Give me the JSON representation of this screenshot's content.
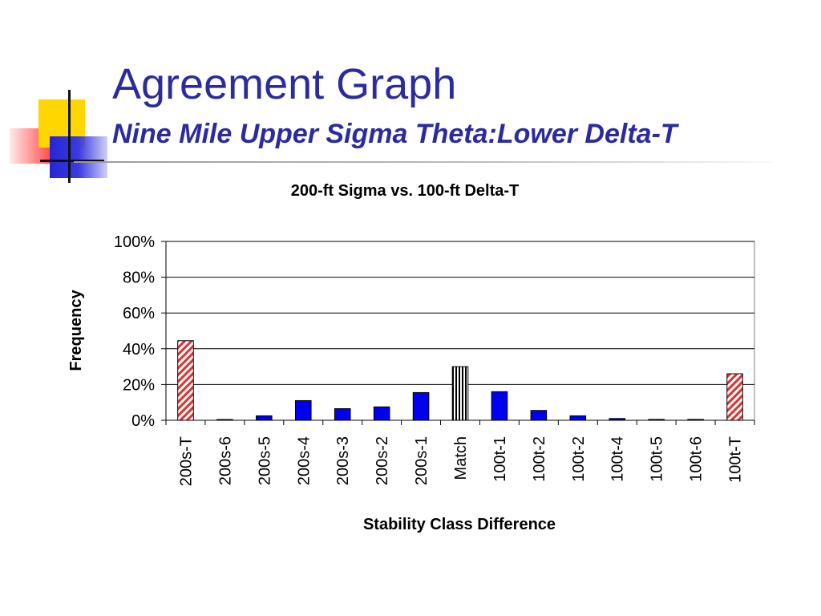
{
  "slide": {
    "title": "Agreement Graph",
    "subtitle": "Nine Mile Upper Sigma Theta:Lower Delta-T"
  },
  "colors": {
    "title": "#2b2b9e",
    "bar_blue": "#0000ee",
    "hatch_red": "#e03030",
    "hatch_black": "#000000"
  },
  "chart_data": {
    "type": "bar",
    "title": "200-ft Sigma vs. 100-ft Delta-T",
    "xlabel": "Stability Class Difference",
    "ylabel": "Frequency",
    "ylim": [
      0,
      100
    ],
    "y_ticks": [
      "0%",
      "20%",
      "40%",
      "60%",
      "80%",
      "100%"
    ],
    "categories": [
      "200s-T",
      "200s-6",
      "200s-5",
      "200s-4",
      "200s-3",
      "200s-2",
      "200s-1",
      "Match",
      "100t-1",
      "100t-2",
      "100t-2",
      "100t-4",
      "100t-5",
      "100t-6",
      "100t-T"
    ],
    "values": [
      44.5,
      0.4,
      2.5,
      11,
      6.5,
      7.5,
      15.5,
      30,
      16,
      5.5,
      2.5,
      1,
      0.5,
      0.5,
      26
    ],
    "bar_styles": [
      "hatch-red",
      "solid-blue",
      "solid-blue",
      "solid-blue",
      "solid-blue",
      "solid-blue",
      "solid-blue",
      "hatch-black",
      "solid-blue",
      "solid-blue",
      "solid-blue",
      "solid-blue",
      "solid-blue",
      "solid-blue",
      "hatch-red"
    ],
    "grid": true,
    "legend": "none"
  }
}
